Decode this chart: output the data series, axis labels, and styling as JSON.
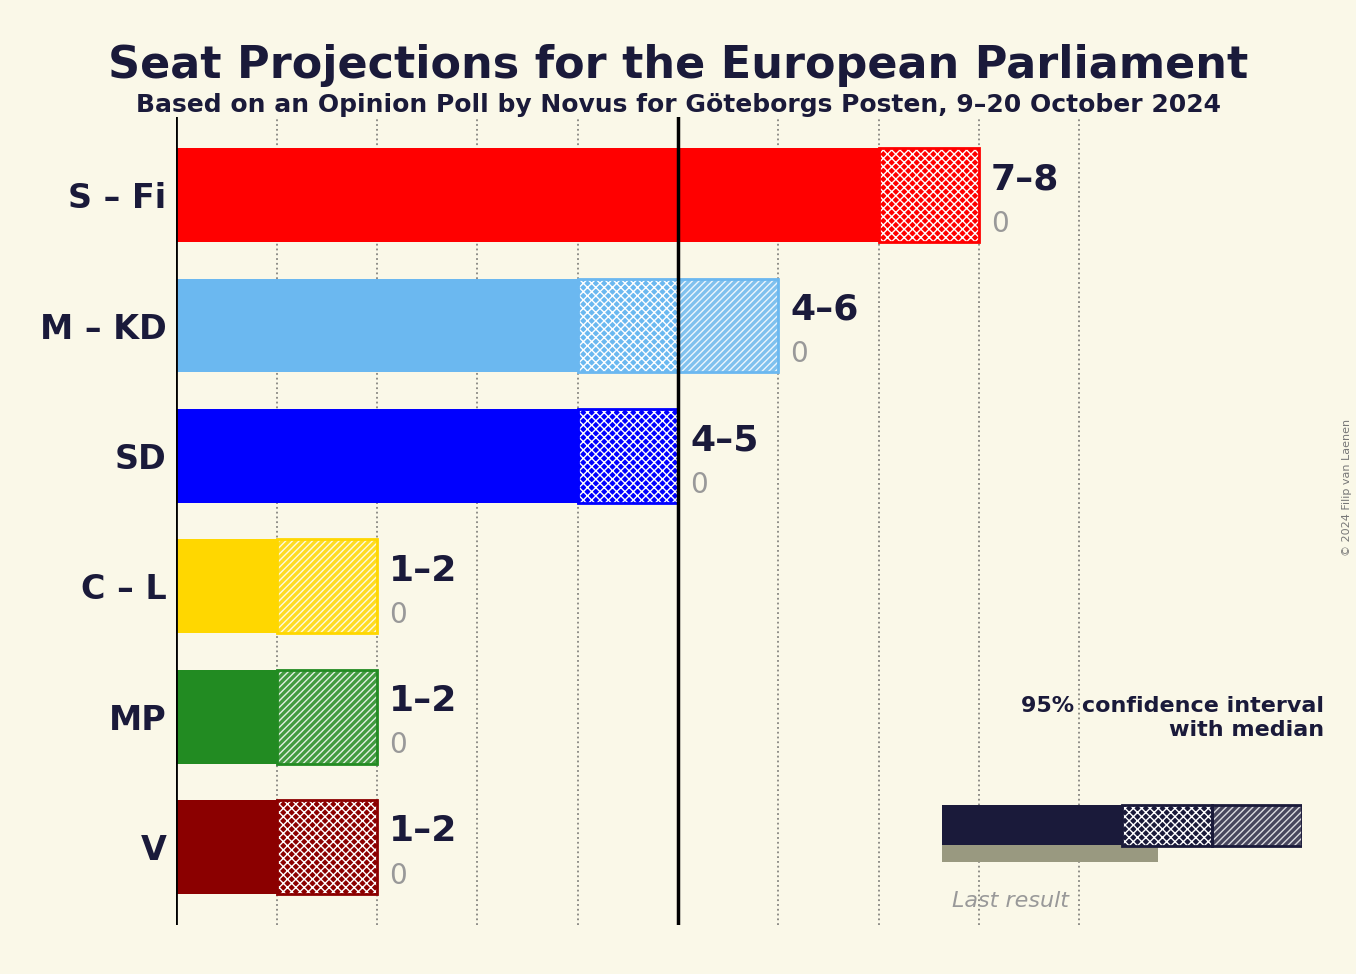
{
  "title": "Seat Projections for the European Parliament",
  "subtitle": "Based on an Opinion Poll by Novus for Göteborgs Posten, 9–20 October 2024",
  "copyright": "© 2024 Filip van Laenen",
  "background_color": "#FAF8E8",
  "parties": [
    "S – Fi",
    "M – KD",
    "SD",
    "C – L",
    "MP",
    "V"
  ],
  "bar_colors": [
    "#FF0000",
    "#6BB8F0",
    "#0000FF",
    "#FFD700",
    "#228B22",
    "#8B0000"
  ],
  "median": [
    7,
    4,
    4,
    1,
    1,
    1
  ],
  "ci_high": [
    8,
    6,
    5,
    2,
    2,
    2
  ],
  "crosshatch_width": [
    1,
    1,
    1,
    0,
    0,
    1
  ],
  "diagonal_width": [
    0,
    1,
    0,
    1,
    1,
    0
  ],
  "range_labels": [
    "7–8",
    "4–6",
    "4–5",
    "1–2",
    "1–2",
    "1–2"
  ],
  "xlim": [
    0,
    10
  ],
  "xtick_positions": [
    1,
    2,
    3,
    4,
    5,
    6,
    7,
    8,
    9
  ],
  "median_line_x": 5,
  "title_fontsize": 32,
  "subtitle_fontsize": 18,
  "label_fontsize": 24,
  "annotation_fontsize": 26,
  "gray_color": "#999999",
  "dark_color": "#1a1a3a",
  "last_result_bar_color": "#999980",
  "legend_bar_color": "#1a1a3a"
}
